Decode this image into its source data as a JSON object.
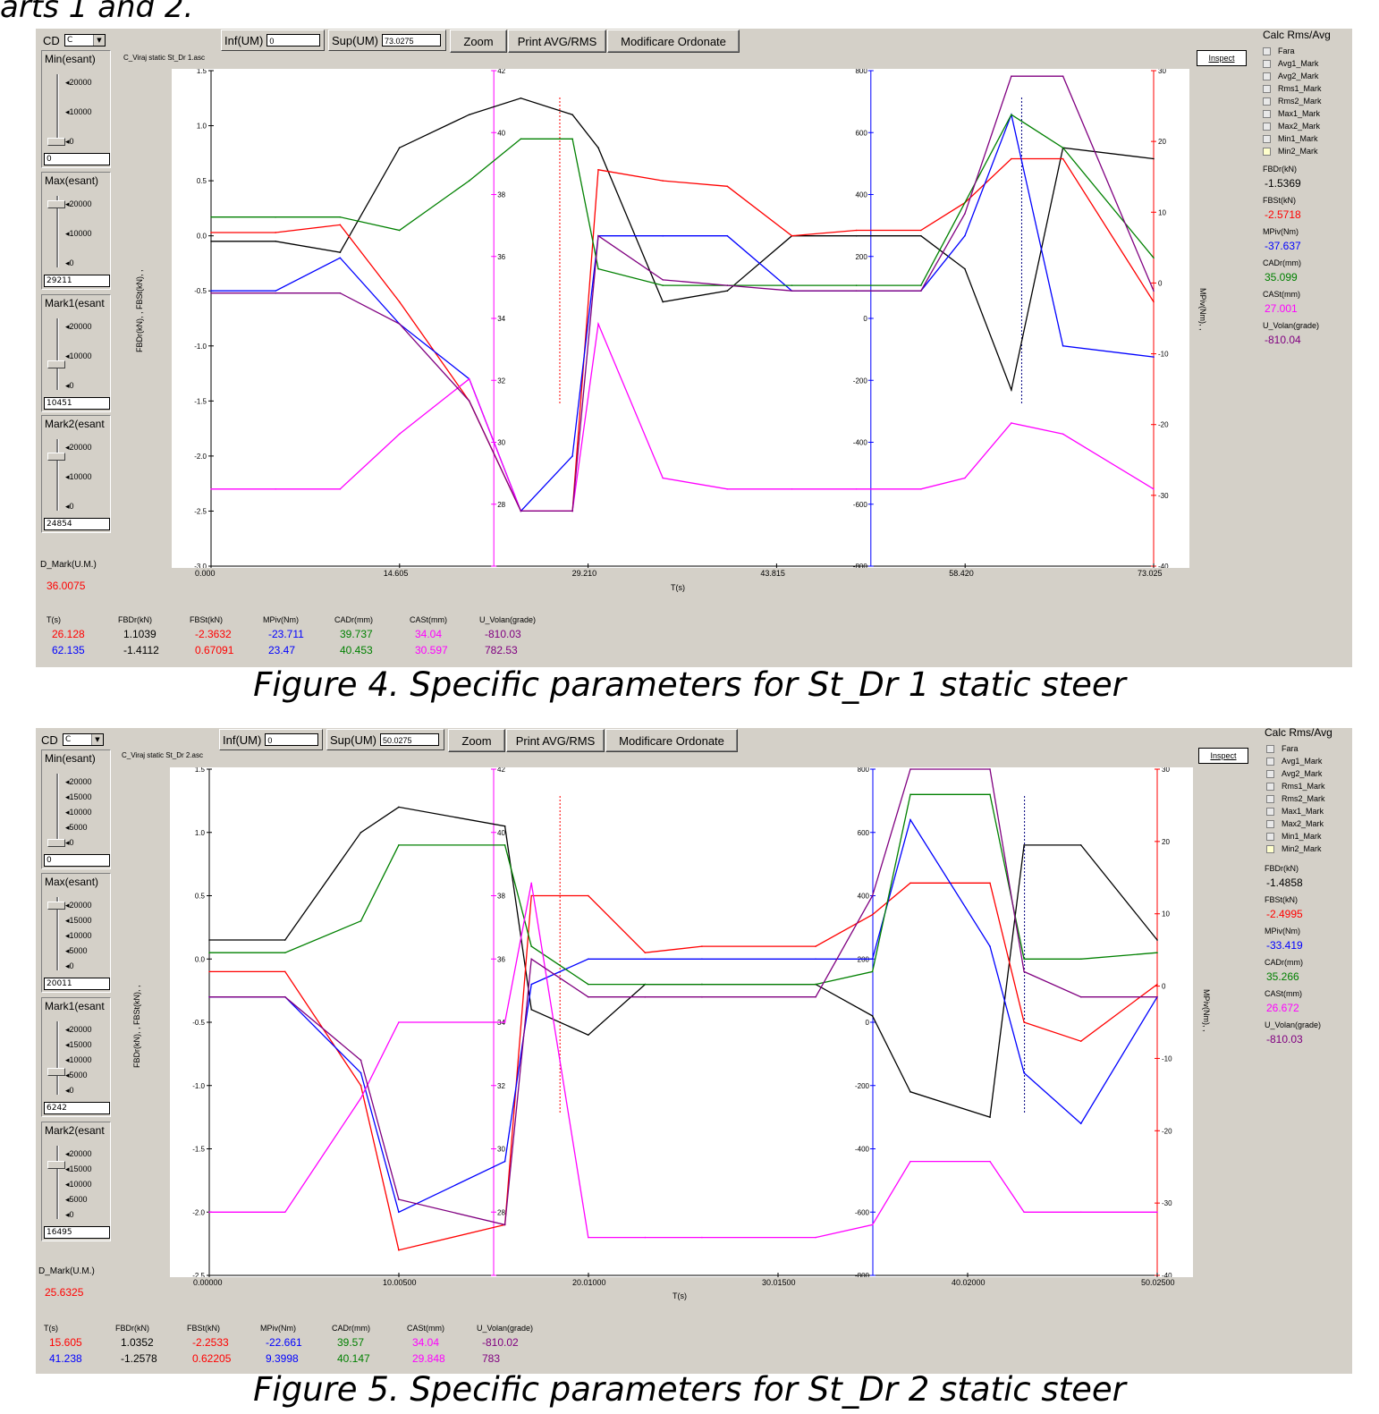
{
  "top_caption": "arts 1 and 2.",
  "figures": [
    {
      "caption": "Figure 4. Specific parameters for St_Dr 1 static steer",
      "cd_label": "CD",
      "cd_value": "C",
      "inf_label": "Inf(UM)",
      "inf_value": "0",
      "sup_label": "Sup(UM)",
      "sup_value": "73.0275",
      "zoom_label": "Zoom",
      "print_label": "Print AVG/RMS",
      "mod_label": "Modificare Ordonate",
      "file_title": "C_Viraj static St_Dr 1.asc",
      "sliders": [
        {
          "title": "Min(esant)",
          "ticks": [
            "20000",
            "10000",
            "0"
          ],
          "value": "0",
          "level": 0.0
        },
        {
          "title": "Max(esant)",
          "ticks": [
            "20000",
            "10000",
            "0"
          ],
          "value": "29211",
          "level": 1.0
        },
        {
          "title": "Mark1(esant",
          "ticks": [
            "20000",
            "10000",
            "0"
          ],
          "value": "10451",
          "level": 0.36
        },
        {
          "title": "Mark2(esant",
          "ticks": [
            "20000",
            "10000",
            "0"
          ],
          "value": "24854",
          "level": 0.85
        }
      ],
      "d_mark_label": "D_Mark(U.M.)",
      "d_mark_value": "36.0075",
      "calc_title": "Calc Rms/Avg",
      "radio_options": [
        "Fara",
        "Avg1_Mark",
        "Avg2_Mark",
        "Rms1_Mark",
        "Rms2_Mark",
        "Max1_Mark",
        "Max2_Mark",
        "Min1_Mark",
        "Min2_Mark"
      ],
      "inspect_label": "Inspect",
      "side_readouts": [
        {
          "label": "FBDr(kN)",
          "value": "-1.5369",
          "color": "#000000"
        },
        {
          "label": "FBSt(kN)",
          "value": "-2.5718",
          "color": "#ff0000"
        },
        {
          "label": "MPiv(Nm)",
          "value": "-37.637",
          "color": "#0000ff"
        },
        {
          "label": "CADr(mm)",
          "value": "35.099",
          "color": "#008000"
        },
        {
          "label": "CASt(mm)",
          "value": "27.001",
          "color": "#ff00ff"
        },
        {
          "label": "U_Volan(grade)",
          "value": "-810.04",
          "color": "#800080"
        }
      ],
      "table_headers": [
        "T(s)",
        "FBDr(kN)",
        "FBSt(kN)",
        "MPiv(Nm)",
        "CADr(mm)",
        "CASt(mm)",
        "U_Volan(grade)"
      ],
      "table_rows": [
        [
          "26.128",
          "1.1039",
          "-2.3632",
          "-23.711",
          "39.737",
          "34.04",
          "-810.03"
        ],
        [
          "62.135",
          "-1.4112",
          "0.67091",
          "23.47",
          "40.453",
          "30.597",
          "782.53"
        ]
      ],
      "row_colors": [
        "#ff0000",
        "#0000ff"
      ],
      "col_colors": [
        "#000000",
        "#ff0000",
        "#0000ff",
        "#008000",
        "#ff00ff",
        "#800080"
      ],
      "x_ticks": [
        "0.000",
        "14.605",
        "29.210",
        "43.815",
        "58.420",
        "73.025"
      ],
      "x_label": "T(s)",
      "y_left_ticks": [
        "1.5",
        "1.0",
        "0.5",
        "0.0",
        "-0.5",
        "-1.0",
        "-1.5",
        "-2.0",
        "-2.5",
        "-3.0"
      ],
      "y_left_label": "FBDr(kN), , FBSt(kN), ,",
      "y_mid_ticks": [
        "42",
        "40",
        "38",
        "36",
        "34",
        "32",
        "30",
        "28"
      ],
      "y_mid2_ticks": [
        "800",
        "600",
        "400",
        "200",
        "0",
        "-200",
        "-400",
        "-600",
        "-800"
      ],
      "y_right_ticks": [
        "30",
        "20",
        "10",
        "0",
        "-10",
        "-20",
        "-30",
        "-40"
      ],
      "y_right_label": "MPiv(Nm), ,"
    },
    {
      "caption": "Figure 5. Specific parameters for St_Dr 2 static steer",
      "cd_label": "CD",
      "cd_value": "C",
      "inf_label": "Inf(UM)",
      "inf_value": "0",
      "sup_label": "Sup(UM)",
      "sup_value": "50.0275",
      "zoom_label": "Zoom",
      "print_label": "Print AVG/RMS",
      "mod_label": "Modificare Ordonate",
      "file_title": "C_Viraj static St_Dr 2.asc",
      "sliders": [
        {
          "title": "Min(esant)",
          "ticks": [
            "20000",
            "15000",
            "10000",
            "5000",
            "0"
          ],
          "value": "0",
          "level": 0.0
        },
        {
          "title": "Max(esant)",
          "ticks": [
            "20000",
            "15000",
            "10000",
            "5000",
            "0"
          ],
          "value": "20011",
          "level": 1.0
        },
        {
          "title": "Mark1(esant",
          "ticks": [
            "20000",
            "15000",
            "10000",
            "5000",
            "0"
          ],
          "value": "6242",
          "level": 0.31
        },
        {
          "title": "Mark2(esant",
          "ticks": [
            "20000",
            "15000",
            "10000",
            "5000",
            "0"
          ],
          "value": "16495",
          "level": 0.82
        }
      ],
      "d_mark_label": "D_Mark(U.M.)",
      "d_mark_value": "25.6325",
      "calc_title": "Calc Rms/Avg",
      "radio_options": [
        "Fara",
        "Avg1_Mark",
        "Avg2_Mark",
        "Rms1_Mark",
        "Rms2_Mark",
        "Max1_Mark",
        "Max2_Mark",
        "Min1_Mark",
        "Min2_Mark"
      ],
      "inspect_label": "Inspect",
      "side_readouts": [
        {
          "label": "FBDr(kN)",
          "value": "-1.4858",
          "color": "#000000"
        },
        {
          "label": "FBSt(kN)",
          "value": "-2.4995",
          "color": "#ff0000"
        },
        {
          "label": "MPiv(Nm)",
          "value": "-33.419",
          "color": "#0000ff"
        },
        {
          "label": "CADr(mm)",
          "value": "35.266",
          "color": "#008000"
        },
        {
          "label": "CASt(mm)",
          "value": "26.672",
          "color": "#ff00ff"
        },
        {
          "label": "U_Volan(grade)",
          "value": "-810.03",
          "color": "#800080"
        }
      ],
      "table_headers": [
        "T(s)",
        "FBDr(kN)",
        "FBSt(kN)",
        "MPiv(Nm)",
        "CADr(mm)",
        "CASt(mm)",
        "U_Volan(grade)"
      ],
      "table_rows": [
        [
          "15.605",
          "1.0352",
          "-2.2533",
          "-22.661",
          "39.57",
          "34.04",
          "-810.02"
        ],
        [
          "41.238",
          "-1.2578",
          "0.62205",
          "9.3998",
          "40.147",
          "29.848",
          "783"
        ]
      ],
      "row_colors": [
        "#ff0000",
        "#0000ff"
      ],
      "col_colors": [
        "#000000",
        "#ff0000",
        "#0000ff",
        "#008000",
        "#ff00ff",
        "#800080"
      ],
      "x_ticks": [
        "0.00000",
        "10.00500",
        "20.01000",
        "30.01500",
        "40.02000",
        "50.02500"
      ],
      "x_label": "T(s)",
      "y_left_ticks": [
        "1.5",
        "1.0",
        "0.5",
        "0.0",
        "-0.5",
        "-1.0",
        "-1.5",
        "-2.0",
        "-2.5"
      ],
      "y_left_label": "FBDr(kN), , FBSt(kN), ,",
      "y_mid_ticks": [
        "42",
        "40",
        "38",
        "36",
        "34",
        "32",
        "30",
        "28"
      ],
      "y_mid2_ticks": [
        "800",
        "600",
        "400",
        "200",
        "0",
        "-200",
        "-400",
        "-600",
        "-800"
      ],
      "y_right_ticks": [
        "30",
        "20",
        "10",
        "0",
        "-10",
        "-20",
        "-30",
        "-40"
      ],
      "y_right_label": "MPiv(Nm), ,"
    }
  ],
  "chart_data": [
    {
      "type": "line",
      "title": "C_Viraj static St_Dr 1.asc",
      "xlabel": "T(s)",
      "ylabel": "FBDr(kN), , FBSt(kN), ,",
      "xlim": [
        0,
        73.025
      ],
      "ylim": [
        -3.0,
        1.5
      ],
      "x": [
        0,
        5,
        10,
        14.6,
        20,
        24,
        28,
        30,
        35,
        40,
        45,
        50,
        55,
        58.4,
        62,
        66,
        73.025
      ],
      "series": [
        {
          "name": "FBDr(kN)",
          "color": "#000000",
          "values": [
            -0.05,
            -0.05,
            -0.15,
            0.8,
            1.1,
            1.25,
            1.1,
            0.8,
            -0.6,
            -0.5,
            0.0,
            0.0,
            0.0,
            -0.3,
            -1.4,
            0.8,
            0.7
          ]
        },
        {
          "name": "FBSt(kN)",
          "color": "#ff0000",
          "values": [
            0.03,
            0.03,
            0.1,
            -0.6,
            -1.5,
            -2.5,
            -2.5,
            0.6,
            0.5,
            0.45,
            0.0,
            0.05,
            0.05,
            0.3,
            0.7,
            0.7,
            -0.6
          ]
        },
        {
          "name": "MPiv(Nm)",
          "color": "#0000ff",
          "values": [
            -0.5,
            -0.5,
            -0.2,
            -0.8,
            -1.3,
            -2.5,
            -2.0,
            0.0,
            0.0,
            0.0,
            -0.5,
            -0.5,
            -0.5,
            0.0,
            1.1,
            -1.0,
            -1.1
          ]
        },
        {
          "name": "CADr(mm)",
          "color": "#008000",
          "values": [
            0.17,
            0.17,
            0.17,
            0.05,
            0.5,
            0.88,
            0.88,
            -0.3,
            -0.45,
            -0.45,
            -0.45,
            -0.45,
            -0.45,
            0.3,
            1.1,
            0.8,
            -0.2
          ]
        },
        {
          "name": "CASt(mm)",
          "color": "#ff00ff",
          "values": [
            -2.3,
            -2.3,
            -2.3,
            -1.8,
            -1.3,
            -2.5,
            -2.5,
            -0.8,
            -2.2,
            -2.3,
            -2.3,
            -2.3,
            -2.3,
            -2.2,
            -1.7,
            -1.8,
            -2.3
          ]
        },
        {
          "name": "U_Volan(grade)",
          "color": "#800080",
          "values": [
            -0.52,
            -0.52,
            -0.52,
            -0.8,
            -1.5,
            -2.5,
            -2.5,
            0.0,
            -0.4,
            -0.45,
            -0.5,
            -0.5,
            -0.5,
            0.2,
            1.45,
            1.45,
            -0.5
          ]
        }
      ]
    },
    {
      "type": "line",
      "title": "C_Viraj static St_Dr 2.asc",
      "xlabel": "T(s)",
      "ylabel": "FBDr(kN), , FBSt(kN), ,",
      "xlim": [
        0,
        50.025
      ],
      "ylim": [
        -2.5,
        1.5
      ],
      "x": [
        0,
        4,
        8,
        10,
        15.6,
        17,
        20,
        23,
        26,
        32,
        35,
        37,
        41.2,
        43,
        46,
        50.025
      ],
      "series": [
        {
          "name": "FBDr(kN)",
          "color": "#000000",
          "values": [
            0.15,
            0.15,
            1.0,
            1.2,
            1.05,
            -0.4,
            -0.6,
            -0.2,
            -0.2,
            -0.2,
            -0.45,
            -1.05,
            -1.25,
            0.9,
            0.9,
            0.15
          ]
        },
        {
          "name": "FBSt(kN)",
          "color": "#ff0000",
          "values": [
            -0.1,
            -0.1,
            -1.0,
            -2.3,
            -2.1,
            0.5,
            0.5,
            0.05,
            0.1,
            0.1,
            0.35,
            0.6,
            0.6,
            -0.5,
            -0.65,
            -0.2
          ]
        },
        {
          "name": "MPiv(Nm)",
          "color": "#0000ff",
          "values": [
            -0.3,
            -0.3,
            -0.9,
            -2.0,
            -1.6,
            -0.2,
            0.0,
            0.0,
            0.0,
            0.0,
            0.0,
            1.1,
            0.1,
            -0.9,
            -1.3,
            -0.3
          ]
        },
        {
          "name": "CADr(mm)",
          "color": "#008000",
          "values": [
            0.05,
            0.05,
            0.3,
            0.9,
            0.9,
            0.1,
            -0.2,
            -0.2,
            -0.2,
            -0.2,
            -0.1,
            1.3,
            1.3,
            0.0,
            0.0,
            0.05
          ]
        },
        {
          "name": "CASt(mm)",
          "color": "#ff00ff",
          "values": [
            -2.0,
            -2.0,
            -1.1,
            -0.5,
            -0.5,
            0.6,
            -2.2,
            -2.2,
            -2.2,
            -2.2,
            -2.1,
            -1.6,
            -1.6,
            -2.0,
            -2.0,
            -2.0
          ]
        },
        {
          "name": "U_Volan(grade)",
          "color": "#800080",
          "values": [
            -0.3,
            -0.3,
            -0.8,
            -1.9,
            -2.1,
            0.0,
            -0.3,
            -0.3,
            -0.3,
            -0.3,
            0.5,
            1.5,
            1.5,
            -0.1,
            -0.3,
            -0.3
          ]
        }
      ]
    }
  ]
}
